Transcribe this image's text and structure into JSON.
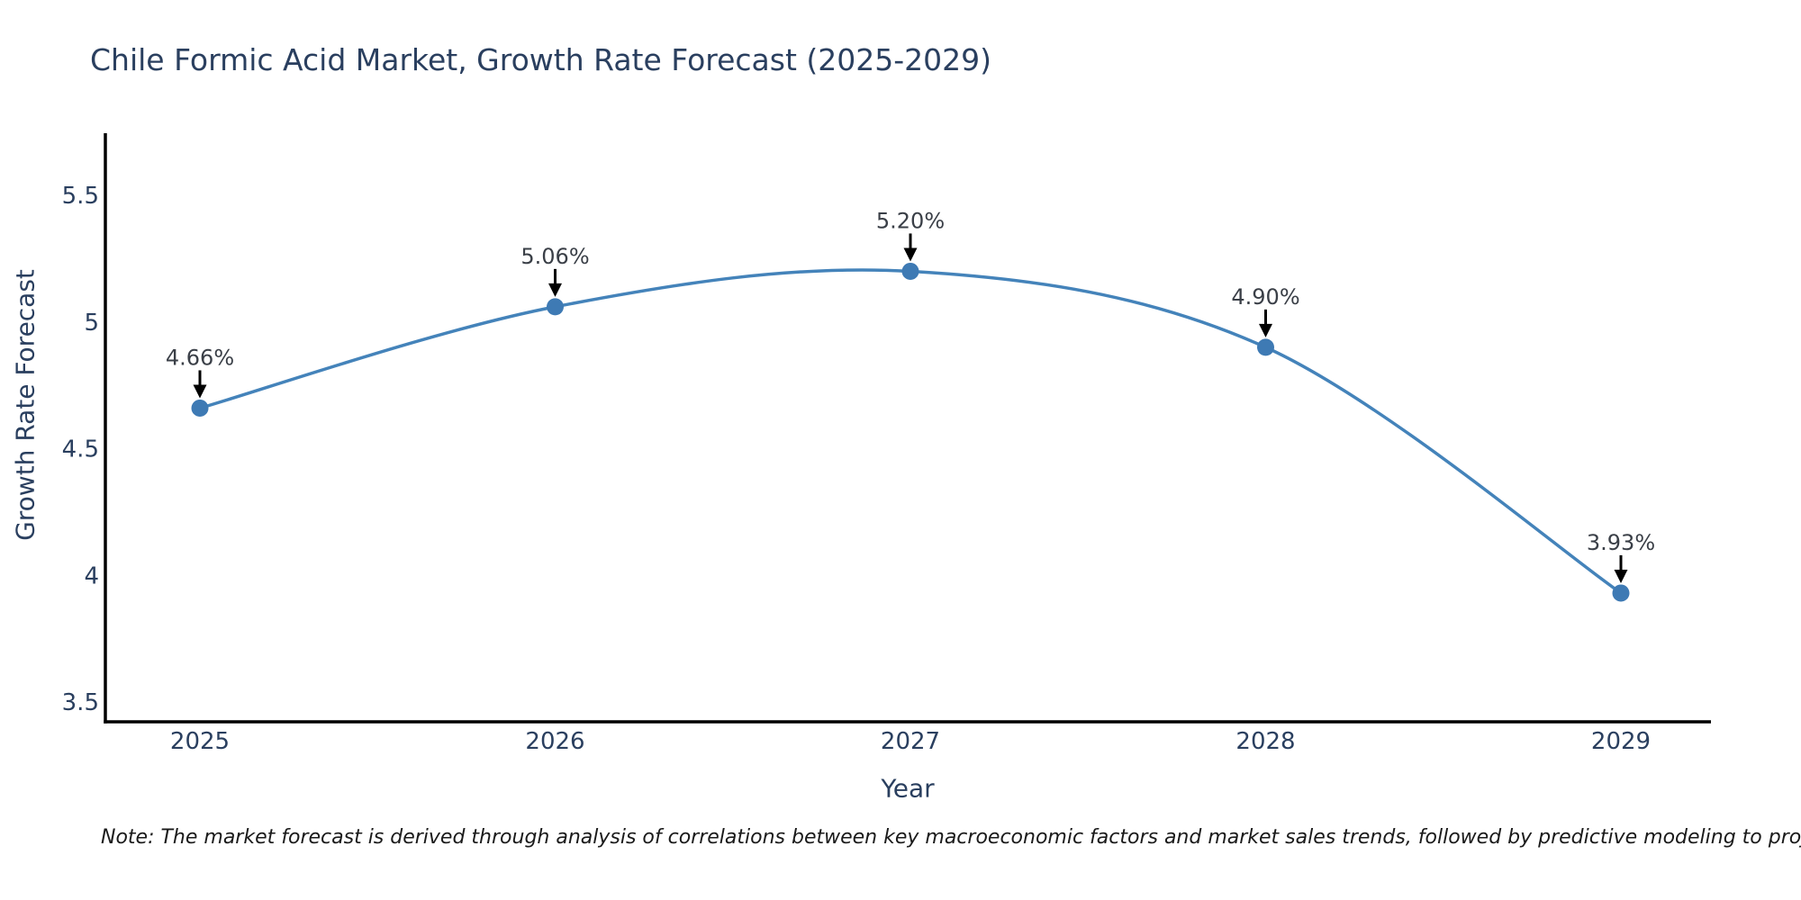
{
  "title": "Chile Formic Acid Market, Growth Rate Forecast (2025-2029)",
  "note": "Note: The market forecast is derived through analysis of correlations between key macroeconomic factors and market sales trends, followed by predictive modeling to project future sales",
  "colors": {
    "background": "#ffffff",
    "title_text": "#2a3f5f",
    "axis_line": "#000000",
    "tick_text": "#2a3f5f",
    "axis_title_text": "#2a3f5f",
    "line": "#4483ba",
    "marker": "#3e7ab4",
    "annotation_text": "#3a3f47",
    "annotation_arrow": "#000000",
    "note_text": "#1a1a1a"
  },
  "chart_data": {
    "type": "line",
    "title": "Chile Formic Acid Market, Growth Rate Forecast (2025-2029)",
    "xlabel": "Year",
    "ylabel": "Growth Rate Forecast",
    "categories": [
      "2025",
      "2026",
      "2027",
      "2028",
      "2029"
    ],
    "values": [
      4.66,
      5.06,
      5.2,
      4.9,
      3.93
    ],
    "point_labels": [
      "4.66%",
      "5.06%",
      "5.20%",
      "4.90%",
      "3.93%"
    ],
    "y_ticks": [
      3.5,
      4,
      4.5,
      5,
      5.5
    ],
    "ylim": [
      3.42,
      5.74
    ],
    "line_shape": "spline",
    "grid": false,
    "legend": false
  }
}
